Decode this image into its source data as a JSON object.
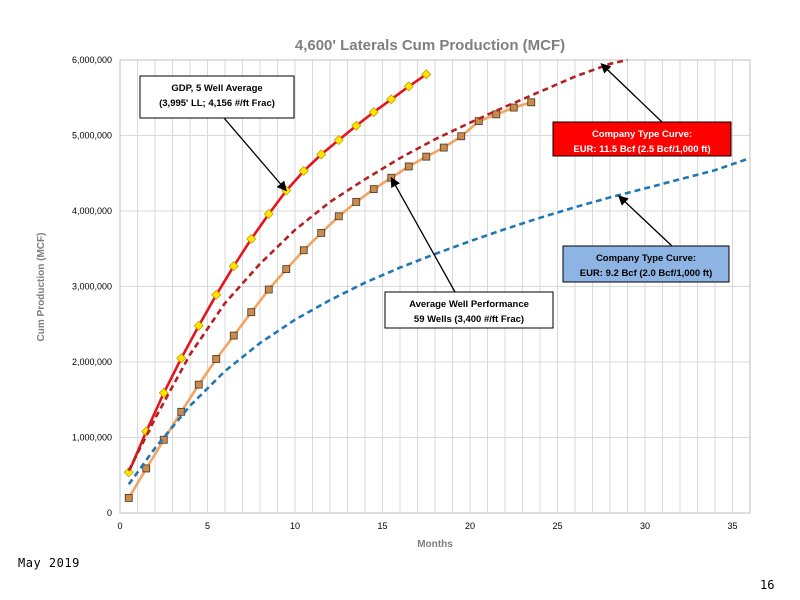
{
  "chart_data": {
    "type": "line",
    "title": "4,600' Laterals Cum Production (MCF)",
    "xlabel": "Months",
    "ylabel": "Cum Production (MCF)",
    "xlim": [
      0,
      36
    ],
    "ylim": [
      0,
      6000000
    ],
    "xticks": [
      0,
      5,
      10,
      15,
      20,
      25,
      30,
      35
    ],
    "yticks": [
      0,
      1000000,
      2000000,
      3000000,
      4000000,
      5000000,
      6000000
    ],
    "ytick_labels": [
      "0",
      "1,000,000",
      "2,000,000",
      "3,000,000",
      "4,000,000",
      "5,000,000",
      "6,000,000"
    ],
    "grid": true,
    "series": [
      {
        "key": "gdp",
        "color": "#e8141b",
        "style": "solid",
        "marker": "diamond",
        "marker_color": "#ffe600",
        "x": [
          0.5,
          1.5,
          2.5,
          3.5,
          4.5,
          5.5,
          6.5,
          7.5,
          8.5,
          9.5,
          10.5,
          11.5,
          12.5,
          13.5,
          14.5,
          15.5,
          16.5,
          17.5
        ],
        "y": [
          540000,
          1080000,
          1590000,
          2050000,
          2480000,
          2890000,
          3270000,
          3630000,
          3960000,
          4270000,
          4530000,
          4750000,
          4940000,
          5130000,
          5310000,
          5480000,
          5650000,
          5810000
        ]
      },
      {
        "key": "avg_well",
        "color": "#f4a460",
        "style": "solid",
        "marker": "square",
        "marker_color": "#c98b4e",
        "x": [
          0.5,
          1.5,
          2.5,
          3.5,
          4.5,
          5.5,
          6.5,
          7.5,
          8.5,
          9.5,
          10.5,
          11.5,
          12.5,
          13.5,
          14.5,
          15.5,
          16.5,
          17.5,
          18.5,
          19.5,
          20.5,
          21.5,
          22.5,
          23.5
        ],
        "y": [
          200000,
          590000,
          970000,
          1340000,
          1700000,
          2040000,
          2350000,
          2660000,
          2960000,
          3230000,
          3480000,
          3710000,
          3930000,
          4120000,
          4290000,
          4440000,
          4590000,
          4720000,
          4840000,
          4990000,
          5190000,
          5280000,
          5370000,
          5440000
        ]
      },
      {
        "key": "type_curve_11_5",
        "color": "#b22222",
        "style": "dashed",
        "x": [
          0.5,
          2,
          4,
          6,
          8,
          10,
          12,
          14,
          16,
          18,
          20,
          22,
          24,
          26,
          28,
          29
        ],
        "y": [
          560000,
          1250000,
          2100000,
          2780000,
          3300000,
          3750000,
          4120000,
          4420000,
          4700000,
          4950000,
          5170000,
          5380000,
          5580000,
          5780000,
          5950000,
          6000000
        ]
      },
      {
        "key": "type_curve_9_2",
        "color": "#1f77b4",
        "style": "dashed",
        "x": [
          0.5,
          2,
          4,
          6,
          8,
          10,
          12,
          14,
          16,
          18,
          20,
          22,
          24,
          26,
          28,
          30,
          32,
          34,
          36
        ],
        "y": [
          380000,
          860000,
          1420000,
          1880000,
          2250000,
          2560000,
          2820000,
          3050000,
          3250000,
          3430000,
          3600000,
          3760000,
          3910000,
          4050000,
          4180000,
          4300000,
          4420000,
          4540000,
          4700000
        ]
      }
    ],
    "annotations": [
      {
        "key": "gdp",
        "lines": [
          "GDP, 5 Well Average",
          "(3,995' LL; 4,156 #/ft Frac)"
        ],
        "fill": "#ffffff",
        "text_color": "#000000",
        "border": "#000000",
        "arrow_to": [
          9.5,
          4270000
        ]
      },
      {
        "key": "avg_well",
        "lines": [
          "Average Well Performance",
          "59 Wells (3,400 #/ft Frac)"
        ],
        "fill": "#ffffff",
        "text_color": "#000000",
        "border": "#000000",
        "arrow_to": [
          15.5,
          4440000
        ]
      },
      {
        "key": "type_curve_11_5",
        "lines": [
          "Company Type Curve:",
          "EUR: 11.5 Bcf (2.5 Bcf/1,000 ft)"
        ],
        "fill": "#ff0000",
        "text_color": "#ffffff",
        "border": "#000000",
        "arrow_to": [
          27.5,
          5950000
        ]
      },
      {
        "key": "type_curve_9_2",
        "lines": [
          "Company Type Curve:",
          "EUR: 9.2 Bcf (2.0 Bcf/1,000 ft)"
        ],
        "fill": "#8db4e2",
        "text_color": "#000000",
        "border": "#000000",
        "arrow_to": [
          28.5,
          4200000
        ]
      }
    ]
  },
  "footer": {
    "date": "May 2019",
    "page": "16"
  }
}
